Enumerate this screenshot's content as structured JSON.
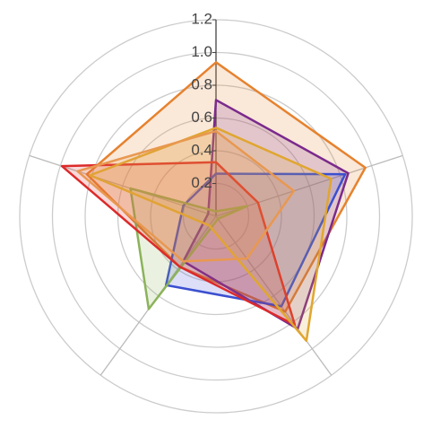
{
  "chart_data": {
    "type": "radar",
    "categories": [
      null,
      null,
      null,
      null,
      null
    ],
    "rlim": [
      0,
      1.2
    ],
    "rticks": [
      0.2,
      0.4,
      0.6,
      0.8,
      {
        "value": 1,
        "label": "1.0"
      },
      1.2
    ],
    "grid": true,
    "series": [
      {
        "color": "#e6822e",
        "values": [
          0.94,
          0.96,
          0.72,
          0.38,
          0.83
        ]
      },
      {
        "color": "#7b2a8c",
        "values": [
          0.71,
          0.85,
          0.85,
          0.34,
          0.05
        ]
      },
      {
        "color": "#3b4fd0",
        "values": [
          0.26,
          0.83,
          0.68,
          0.52,
          0.21
        ]
      },
      {
        "color": "#8bb35a",
        "values": [
          0.03,
          0.2,
          0.02,
          0.7,
          0.55
        ]
      },
      {
        "color": "#dd2a2a",
        "values": [
          0.33,
          0.27,
          0.82,
          0.38,
          0.99
        ]
      },
      {
        "color": "#e0a630",
        "values": [
          0.54,
          0.74,
          0.94,
          0.07,
          0.81
        ]
      },
      {
        "color": "#e89850",
        "values": [
          0.52,
          0.5,
          0.32,
          0.34,
          0.89
        ]
      }
    ]
  }
}
